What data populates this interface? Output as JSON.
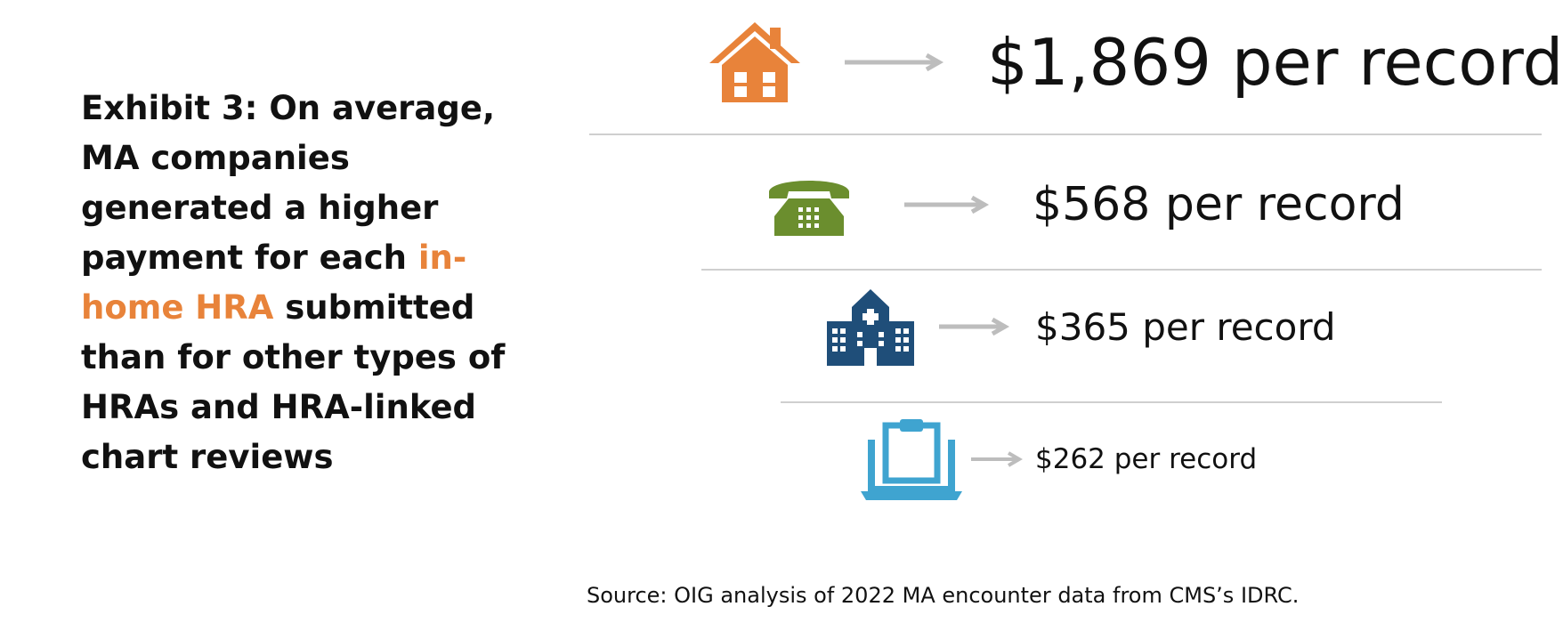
{
  "headline": {
    "part1": "Exhibit 3: On average, MA companies generated a higher payment for each ",
    "highlight": "in-home HRA",
    "part2": " submitted than for other types of HRAs and HRA-linked chart reviews"
  },
  "colors": {
    "highlight": "#E8833A",
    "home_icon": "#E8833A",
    "phone_icon": "#6B8E2E",
    "hospital_icon": "#1F4E79",
    "laptop_icon": "#3FA4D0",
    "arrow": "#bdbdbd",
    "divider": "#cfcfcf"
  },
  "chart_data": {
    "type": "table",
    "items": [
      {
        "icon": "house-icon",
        "value": 1869,
        "label": "$1,869 per record"
      },
      {
        "icon": "telephone-icon",
        "value": 568,
        "label": "$568 per record"
      },
      {
        "icon": "hospital-icon",
        "value": 365,
        "label": "$365 per record"
      },
      {
        "icon": "laptop-clipboard-icon",
        "value": 262,
        "label": "$262 per record"
      }
    ]
  },
  "source": "Source: OIG analysis of 2022 MA encounter data from CMS’s IDRC."
}
